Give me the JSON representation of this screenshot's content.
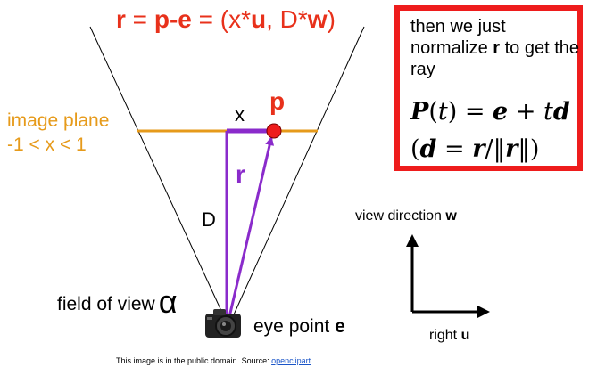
{
  "title": {
    "r": "r",
    "eq1": " = ",
    "p": "p",
    "minus": "-",
    "e": "e",
    "eq2": " = (x*",
    "u": "u",
    "comma": ", D*",
    "w": "w",
    "close": ")"
  },
  "labels": {
    "image_plane": "image plane",
    "image_plane_range": "-1 < x < 1",
    "x": "x",
    "p": "p",
    "r": "r",
    "D": "D",
    "field_of_view": "field of view",
    "alpha": "α",
    "eye_point": "eye point",
    "eye_symbol": "e",
    "view_direction": "view direction",
    "w_symbol": "w",
    "right": "right",
    "u_symbol": "u"
  },
  "note": {
    "line_before": "then we just normalize",
    "bold_r": "r",
    "line_after": "to get the ray",
    "formula1": {
      "P": "P",
      "open": "(",
      "t": "t",
      "eq": ") = ",
      "e": "e",
      "plus": " + ",
      "t2": "t",
      "d": "d"
    },
    "formula2": {
      "open": "(",
      "d": "d",
      "eq": " = ",
      "r": "r",
      "slash": "/‖",
      "r2": "r",
      "close": "‖)"
    }
  },
  "credit": {
    "text": "This image is in the public domain. Source: ",
    "link": "openclipart"
  },
  "colors": {
    "red": "#e8311b",
    "orange": "#e69a1a",
    "purple": "#8a2bcb",
    "box_border": "#ee1c1c"
  }
}
